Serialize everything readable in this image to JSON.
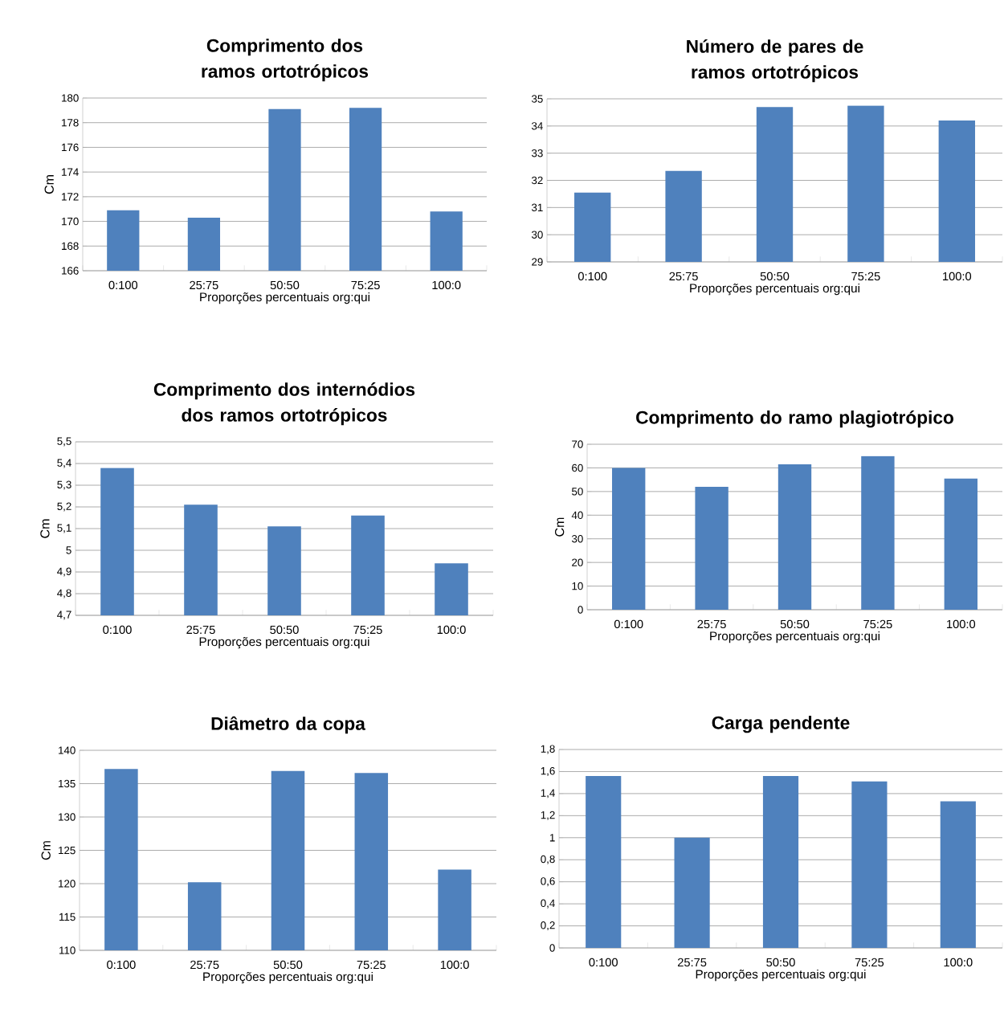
{
  "chart_data": [
    {
      "type": "bar",
      "title": "Comprimento dos ramos ortotrópicos",
      "xlabel": "Proporções percentuais org:qui",
      "ylabel": "Cm",
      "categories": [
        "0:100",
        "25:75",
        "50:50",
        "75:25",
        "100:0"
      ],
      "values": [
        170.9,
        170.3,
        179.1,
        179.2,
        170.8
      ],
      "color": "#4f81bd",
      "ylim": [
        166,
        180
      ],
      "yticks": [
        166,
        168,
        170,
        172,
        174,
        176,
        178,
        180
      ],
      "grid": "y"
    },
    {
      "type": "bar",
      "title": "Número de pares de ramos ortotrópicos",
      "xlabel": "Proporções percentuais org:qui",
      "categories": [
        "0:100",
        "25:75",
        "50:50",
        "75:25",
        "100:0"
      ],
      "values": [
        31.55,
        32.35,
        34.7,
        34.75,
        34.2
      ],
      "color": "#4f81bd",
      "ylim": [
        29,
        35
      ],
      "yticks": [
        29,
        30,
        31,
        32,
        33,
        34,
        35
      ],
      "grid": "y"
    },
    {
      "type": "bar",
      "title": "Comprimento dos internódios dos ramos ortotrópicos",
      "xlabel": "Proporções percentuais org:qui",
      "ylabel": "Cm",
      "categories": [
        "0:100",
        "25:75",
        "50:50",
        "75:25",
        "100:0"
      ],
      "values": [
        5.38,
        5.21,
        5.11,
        5.16,
        4.94
      ],
      "color": "#4f81bd",
      "ylim": [
        4.7,
        5.5
      ],
      "yticks": [
        {
          "value": 4.7,
          "label": "4,7"
        },
        {
          "value": 4.8,
          "label": "4,8"
        },
        {
          "value": 4.9,
          "label": "4,9"
        },
        5,
        {
          "value": 5.1,
          "label": "5,1"
        },
        {
          "value": 5.2,
          "label": "5,2"
        },
        {
          "value": 5.3,
          "label": "5,3"
        },
        {
          "value": 5.4,
          "label": "5,4"
        },
        {
          "value": 5.5,
          "label": "5,5"
        }
      ],
      "grid": "y"
    },
    {
      "type": "bar",
      "title": "Comprimento do ramo plagiotrópico",
      "xlabel": "Proporções percentuais org:qui",
      "ylabel": "Cm",
      "categories": [
        "0:100",
        "25:75",
        "50:50",
        "75:25",
        "100:0"
      ],
      "values": [
        60,
        52,
        61.5,
        65,
        55.5
      ],
      "color": "#4f81bd",
      "ylim": [
        0,
        70
      ],
      "yticks": [
        0,
        10,
        20,
        30,
        40,
        50,
        60,
        70
      ],
      "grid": "y"
    },
    {
      "type": "bar",
      "title": "Diâmetro da copa",
      "xlabel": "Proporções percentuais org:qui",
      "ylabel": "Cm",
      "categories": [
        "0:100",
        "25:75",
        "50:50",
        "75:25",
        "100:0"
      ],
      "values": [
        137.2,
        120.2,
        136.9,
        136.6,
        122.1
      ],
      "color": "#4f81bd",
      "ylim": [
        110,
        140
      ],
      "yticks": [
        110,
        115,
        120,
        125,
        130,
        135,
        140
      ],
      "grid": "y"
    },
    {
      "type": "bar",
      "title": "Carga pendente",
      "xlabel": "Proporções percentuais org:qui",
      "categories": [
        "0:100",
        "25:75",
        "50:50",
        "75:25",
        "100:0"
      ],
      "values": [
        1.56,
        1.0,
        1.56,
        1.51,
        1.33
      ],
      "color": "#4f81bd",
      "ylim": [
        0,
        1.8
      ],
      "yticks": [
        0,
        {
          "value": 0.2,
          "label": "0,2"
        },
        {
          "value": 0.4,
          "label": "0,4"
        },
        {
          "value": 0.6,
          "label": "0,6"
        },
        {
          "value": 0.8,
          "label": "0,8"
        },
        1,
        {
          "value": 1.2,
          "label": "1,2"
        },
        {
          "value": 1.4,
          "label": "1,4"
        },
        {
          "value": 1.6,
          "label": "1,6"
        },
        {
          "value": 1.8,
          "label": "1,8"
        }
      ],
      "grid": "y"
    }
  ]
}
